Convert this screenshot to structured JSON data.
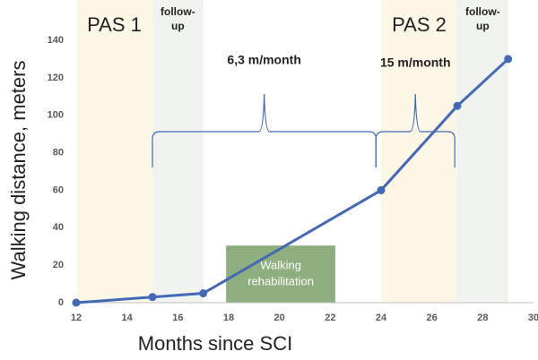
{
  "chart_data": {
    "type": "line",
    "x_label": "Months since SCI",
    "y_label": "Walking distance, meters",
    "x": [
      12,
      15,
      17,
      24,
      27,
      29
    ],
    "series": [
      {
        "name": "Walking distance",
        "color": "#4169b6",
        "values": [
          0,
          3,
          5,
          60,
          105,
          130
        ]
      }
    ],
    "xlim": [
      12,
      30
    ],
    "xticks": [
      12,
      14,
      16,
      18,
      20,
      22,
      24,
      26,
      28,
      30
    ],
    "ylim": [
      0,
      140
    ],
    "yticks": [
      0,
      20,
      40,
      60,
      80,
      100,
      120,
      140
    ],
    "grid": false,
    "bands": [
      {
        "x_range": [
          12,
          15
        ],
        "color": "#fdf7e6",
        "label_lines": [
          "PAS 1"
        ],
        "style": "large"
      },
      {
        "x_range": [
          15,
          17
        ],
        "color": "#f0f3ee",
        "label_lines": [
          "follow-",
          "up"
        ],
        "style": "small"
      },
      {
        "x_range": [
          24,
          27
        ],
        "color": "#fdf7e6",
        "label_lines": [
          "PAS 2"
        ],
        "style": "large"
      },
      {
        "x_range": [
          27,
          29
        ],
        "color": "#f0f3ee",
        "label_lines": [
          "follow-",
          "up"
        ],
        "style": "small"
      }
    ],
    "box": {
      "x_range": [
        17.9,
        22.2
      ],
      "y_range": [
        0,
        30.5
      ],
      "color": "#8fae7f",
      "label_lines": [
        "Walking",
        "rehabilitation"
      ]
    },
    "braces": [
      {
        "x_range": [
          15,
          23.8
        ],
        "label": "6,3 m/month"
      },
      {
        "x_range": [
          23.8,
          26.9
        ],
        "label": "15 m/month"
      }
    ]
  }
}
